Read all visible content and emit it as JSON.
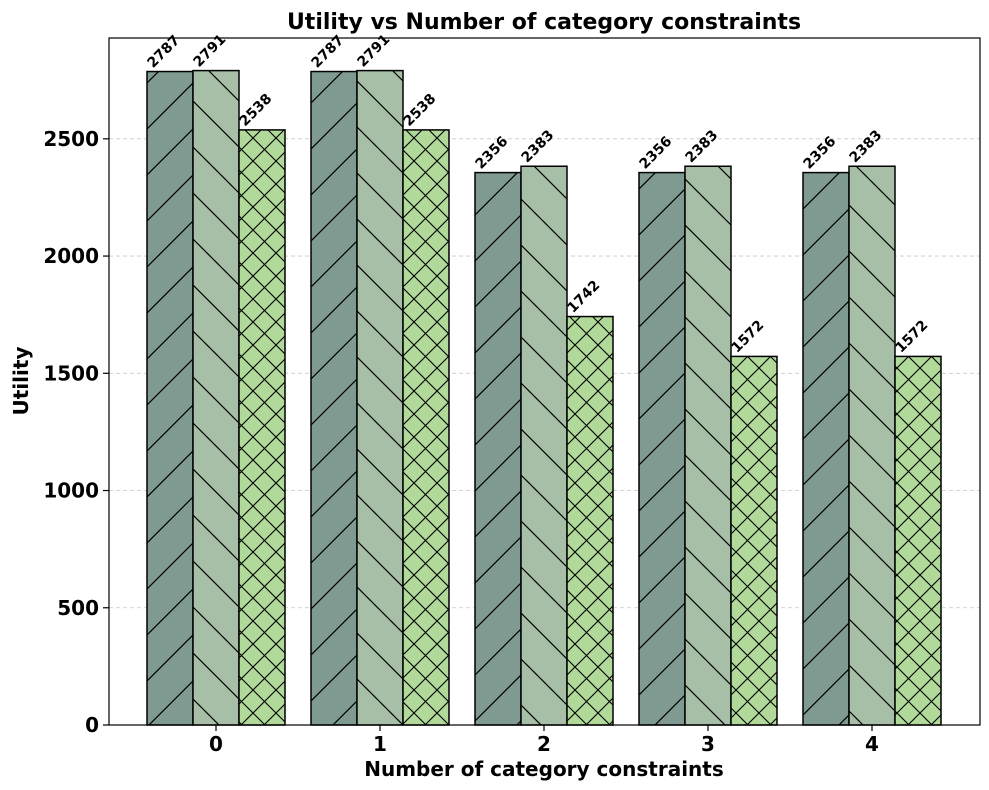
{
  "chart_data": {
    "type": "bar",
    "title": "Utility vs Number of category constraints",
    "xlabel": "Number of category constraints",
    "ylabel": "Utility",
    "categories": [
      "0",
      "1",
      "2",
      "3",
      "4"
    ],
    "series": [
      {
        "values": [
          2787,
          2787,
          2356,
          2356,
          2356
        ],
        "color": "#7f9a90",
        "hatch": "forward-diagonal"
      },
      {
        "values": [
          2791,
          2791,
          2383,
          2383,
          2383
        ],
        "color": "#a6bfa6",
        "hatch": "back-diagonal"
      },
      {
        "values": [
          2538,
          2538,
          1742,
          1572,
          1572
        ],
        "color": "#b0d99a",
        "hatch": "cross"
      }
    ],
    "ylim": [
      0,
      2930
    ],
    "yticks": [
      0,
      500,
      1000,
      1500,
      2000,
      2500
    ],
    "ytick_labels": [
      "0",
      "500",
      "1000",
      "1500",
      "2000",
      "2500"
    ],
    "grid": "horizontal-dashed",
    "legend": "none"
  }
}
